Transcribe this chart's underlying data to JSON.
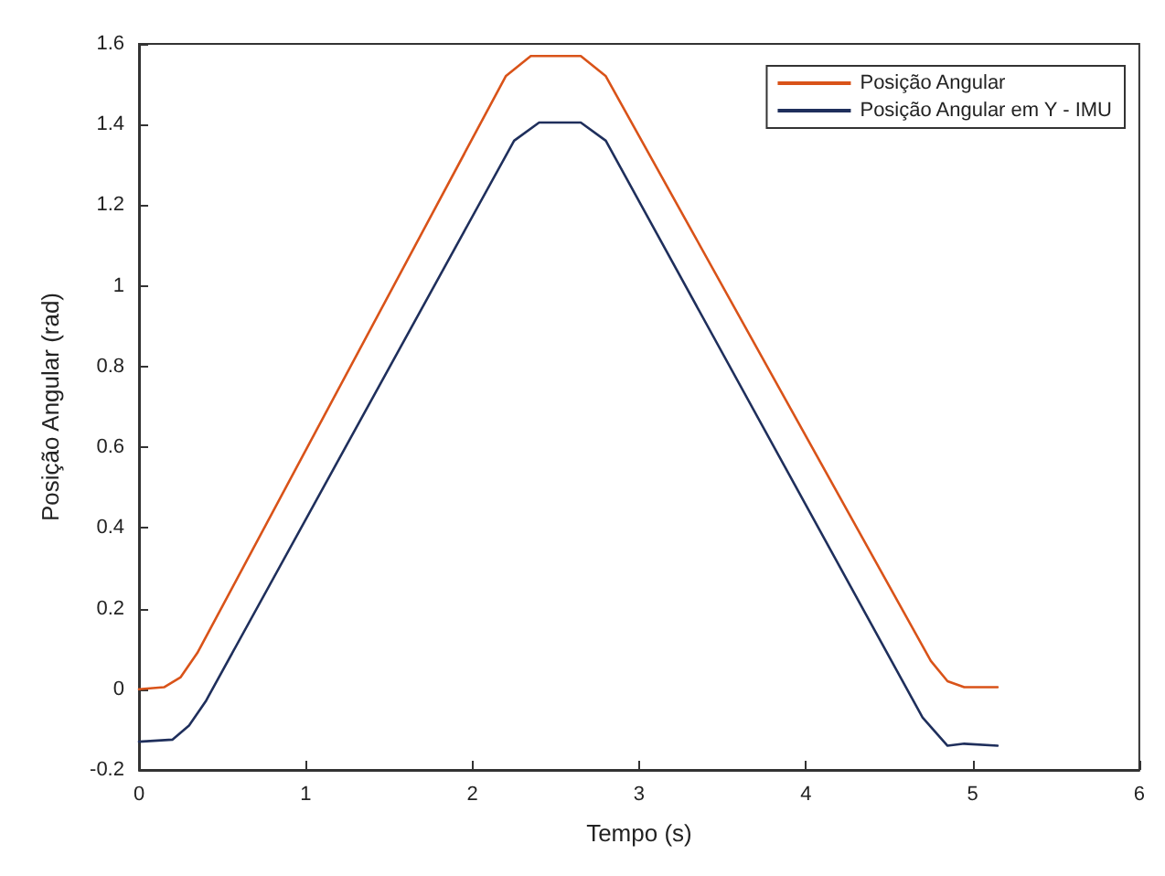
{
  "chart_data": {
    "type": "line",
    "xlabel": "Tempo (s)",
    "ylabel": "Posição Angular (rad)",
    "xlim": [
      0,
      6
    ],
    "xticks": [
      0,
      1,
      2,
      3,
      4,
      5,
      6
    ],
    "ylim": [
      -0.2,
      1.6
    ],
    "yticks": [
      -0.2,
      0,
      0.2,
      0.4,
      0.6,
      0.8,
      1,
      1.2,
      1.4,
      1.6
    ],
    "grid": false,
    "legend": "top right",
    "marker": "none",
    "line_style": "solid",
    "series": [
      {
        "name": "Posição Angular",
        "color": "#d95319",
        "x": [
          0,
          0.15,
          0.25,
          0.35,
          2.2,
          2.35,
          2.65,
          2.8,
          4.75,
          4.85,
          4.95,
          5.15
        ],
        "values": [
          0,
          0.005,
          0.03,
          0.09,
          1.52,
          1.57,
          1.57,
          1.52,
          0.07,
          0.02,
          0.005,
          0.005
        ]
      },
      {
        "name": "Posição Angular em Y - IMU",
        "color": "#1f2f5c",
        "x": [
          0,
          0.2,
          0.3,
          0.4,
          2.25,
          2.4,
          2.65,
          2.8,
          4.7,
          4.85,
          4.95,
          5.15
        ],
        "values": [
          -0.13,
          -0.125,
          -0.09,
          -0.03,
          1.36,
          1.405,
          1.405,
          1.36,
          -0.07,
          -0.14,
          -0.135,
          -0.14
        ]
      }
    ]
  }
}
